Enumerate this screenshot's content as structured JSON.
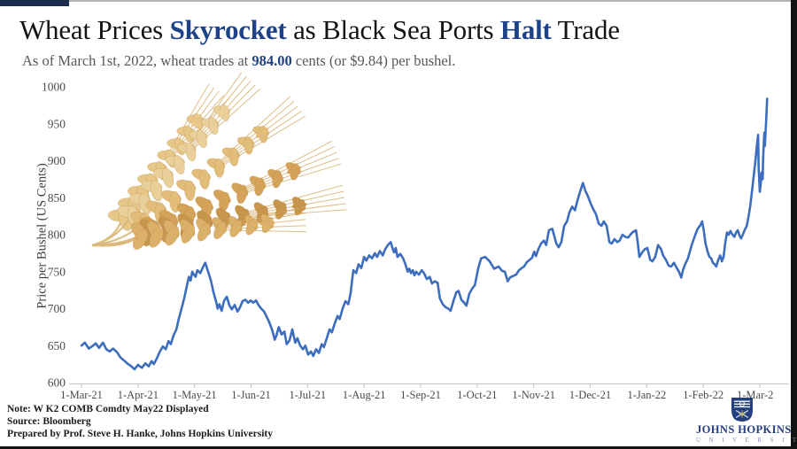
{
  "page": {
    "title": {
      "p1": "Wheat Prices ",
      "accent1": "Skyrocket",
      "p2": " as Black Sea Ports ",
      "accent2": "Halt",
      "p3": " Trade"
    },
    "subtitle": {
      "pre": "As of March 1st, 2022, wheat trades at ",
      "value": "984.00",
      "post": " cents (or $9.84) per bushel."
    },
    "colors": {
      "accent_navy": "#1d4289",
      "line_blue": "#3d6dbd",
      "corner_bar": "#1c2b4e",
      "edge_bar": "#131313"
    }
  },
  "footer": {
    "note": "Note: W K2 COMB Comdty May22 Displayed",
    "source": "Source: Bloomberg",
    "prepared": "Prepared by Prof. Steve H. Hanke, Johns Hopkins University"
  },
  "logo": {
    "name": "JOHNS HOPKINS",
    "univ": "U N I V E R S I T Y"
  },
  "chart_data": {
    "type": "line",
    "ylabel": "Price per Bushel (US Cents)",
    "ylim": [
      600,
      1000
    ],
    "y_tick_labels": [
      600,
      650,
      700,
      750,
      800,
      850,
      900,
      950,
      1000
    ],
    "x_tick_labels": [
      "1-Mar-21",
      "1-Apr-21",
      "1-May-21",
      "1-Jun-21",
      "1-Jul-21",
      "1-Aug-21",
      "1-Sep-21",
      "1-Oct-21",
      "1-Nov-21",
      "1-Dec-21",
      "1-Jan-22",
      "1-Feb-22",
      "1-Mar-2"
    ],
    "x_unit": "months since 1-Mar-2021",
    "grid": false,
    "legend": false,
    "series": [
      {
        "name": "Wheat (W K2 COMB Comdty May22)",
        "color": "#3d6dbd",
        "points": [
          [
            0,
            650
          ],
          [
            0.06,
            654
          ],
          [
            0.13,
            646
          ],
          [
            0.19,
            649
          ],
          [
            0.25,
            653
          ],
          [
            0.31,
            647
          ],
          [
            0.38,
            654
          ],
          [
            0.44,
            645
          ],
          [
            0.5,
            642
          ],
          [
            0.56,
            646
          ],
          [
            0.63,
            641
          ],
          [
            0.69,
            634
          ],
          [
            0.75,
            630
          ],
          [
            0.81,
            626
          ],
          [
            0.88,
            622
          ],
          [
            0.94,
            618
          ],
          [
            1.0,
            624
          ],
          [
            1.07,
            620
          ],
          [
            1.13,
            626
          ],
          [
            1.19,
            622
          ],
          [
            1.24,
            629
          ],
          [
            1.28,
            625
          ],
          [
            1.33,
            632
          ],
          [
            1.38,
            641
          ],
          [
            1.44,
            649
          ],
          [
            1.49,
            645
          ],
          [
            1.54,
            656
          ],
          [
            1.58,
            652
          ],
          [
            1.63,
            664
          ],
          [
            1.68,
            672
          ],
          [
            1.72,
            686
          ],
          [
            1.77,
            700
          ],
          [
            1.82,
            715
          ],
          [
            1.86,
            729
          ],
          [
            1.9,
            743
          ],
          [
            1.93,
            738
          ],
          [
            1.96,
            750
          ],
          [
            1.99,
            746
          ],
          [
            2.02,
            743
          ],
          [
            2.05,
            752
          ],
          [
            2.1,
            748
          ],
          [
            2.15,
            756
          ],
          [
            2.19,
            762
          ],
          [
            2.24,
            750
          ],
          [
            2.29,
            738
          ],
          [
            2.33,
            724
          ],
          [
            2.38,
            710
          ],
          [
            2.41,
            700
          ],
          [
            2.44,
            706
          ],
          [
            2.48,
            697
          ],
          [
            2.52,
            710
          ],
          [
            2.57,
            716
          ],
          [
            2.62,
            704
          ],
          [
            2.66,
            699
          ],
          [
            2.71,
            705
          ],
          [
            2.76,
            696
          ],
          [
            2.8,
            701
          ],
          [
            2.85,
            710
          ],
          [
            2.9,
            712
          ],
          [
            2.95,
            708
          ],
          [
            2.99,
            711
          ],
          [
            3.04,
            708
          ],
          [
            3.09,
            711
          ],
          [
            3.13,
            705
          ],
          [
            3.18,
            700
          ],
          [
            3.23,
            696
          ],
          [
            3.27,
            690
          ],
          [
            3.32,
            682
          ],
          [
            3.37,
            672
          ],
          [
            3.42,
            658
          ],
          [
            3.45,
            664
          ],
          [
            3.49,
            675
          ],
          [
            3.54,
            665
          ],
          [
            3.59,
            669
          ],
          [
            3.63,
            652
          ],
          [
            3.68,
            657
          ],
          [
            3.73,
            672
          ],
          [
            3.78,
            654
          ],
          [
            3.82,
            660
          ],
          [
            3.87,
            650
          ],
          [
            3.92,
            645
          ],
          [
            3.96,
            650
          ],
          [
            4.01,
            638
          ],
          [
            4.06,
            642
          ],
          [
            4.1,
            636
          ],
          [
            4.15,
            645
          ],
          [
            4.2,
            640
          ],
          [
            4.25,
            652
          ],
          [
            4.29,
            648
          ],
          [
            4.34,
            660
          ],
          [
            4.39,
            672
          ],
          [
            4.43,
            668
          ],
          [
            4.48,
            680
          ],
          [
            4.53,
            690
          ],
          [
            4.57,
            686
          ],
          [
            4.62,
            700
          ],
          [
            4.67,
            710
          ],
          [
            4.72,
            706
          ],
          [
            4.76,
            720
          ],
          [
            4.81,
            752
          ],
          [
            4.86,
            748
          ],
          [
            4.9,
            760
          ],
          [
            4.95,
            755
          ],
          [
            5.0,
            770
          ],
          [
            5.04,
            765
          ],
          [
            5.09,
            772
          ],
          [
            5.14,
            768
          ],
          [
            5.19,
            775
          ],
          [
            5.23,
            770
          ],
          [
            5.28,
            778
          ],
          [
            5.33,
            772
          ],
          [
            5.37,
            780
          ],
          [
            5.42,
            786
          ],
          [
            5.47,
            790
          ],
          [
            5.5,
            782
          ],
          [
            5.53,
            776
          ],
          [
            5.56,
            782
          ],
          [
            5.59,
            770
          ],
          [
            5.64,
            774
          ],
          [
            5.69,
            768
          ],
          [
            5.73,
            760
          ],
          [
            5.77,
            750
          ],
          [
            5.8,
            754
          ],
          [
            5.83,
            748
          ],
          [
            5.86,
            752
          ],
          [
            5.89,
            745
          ],
          [
            5.92,
            750
          ],
          [
            5.97,
            746
          ],
          [
            6.02,
            752
          ],
          [
            6.06,
            748
          ],
          [
            6.11,
            740
          ],
          [
            6.16,
            743
          ],
          [
            6.2,
            734
          ],
          [
            6.25,
            737
          ],
          [
            6.3,
            735
          ],
          [
            6.34,
            714
          ],
          [
            6.39,
            706
          ],
          [
            6.44,
            702
          ],
          [
            6.49,
            700
          ],
          [
            6.53,
            697
          ],
          [
            6.58,
            710
          ],
          [
            6.63,
            722
          ],
          [
            6.67,
            724
          ],
          [
            6.72,
            712
          ],
          [
            6.77,
            708
          ],
          [
            6.81,
            704
          ],
          [
            6.86,
            720
          ],
          [
            6.91,
            727
          ],
          [
            6.96,
            732
          ],
          [
            7.02,
            755
          ],
          [
            7.07,
            768
          ],
          [
            7.14,
            770
          ],
          [
            7.22,
            764
          ],
          [
            7.3,
            754
          ],
          [
            7.38,
            757
          ],
          [
            7.44,
            751
          ],
          [
            7.49,
            750
          ],
          [
            7.54,
            737
          ],
          [
            7.58,
            742
          ],
          [
            7.63,
            744
          ],
          [
            7.69,
            746
          ],
          [
            7.74,
            752
          ],
          [
            7.79,
            755
          ],
          [
            7.83,
            757
          ],
          [
            7.88,
            763
          ],
          [
            7.93,
            766
          ],
          [
            7.97,
            769
          ],
          [
            8.01,
            777
          ],
          [
            8.04,
            771
          ],
          [
            8.08,
            780
          ],
          [
            8.13,
            788
          ],
          [
            8.18,
            792
          ],
          [
            8.22,
            786
          ],
          [
            8.27,
            806
          ],
          [
            8.33,
            808
          ],
          [
            8.4,
            788
          ],
          [
            8.44,
            783
          ],
          [
            8.49,
            790
          ],
          [
            8.54,
            812
          ],
          [
            8.59,
            818
          ],
          [
            8.63,
            830
          ],
          [
            8.68,
            838
          ],
          [
            8.73,
            833
          ],
          [
            8.77,
            845
          ],
          [
            8.82,
            858
          ],
          [
            8.87,
            870
          ],
          [
            8.91,
            860
          ],
          [
            8.96,
            852
          ],
          [
            9.01,
            842
          ],
          [
            9.05,
            835
          ],
          [
            9.1,
            828
          ],
          [
            9.15,
            815
          ],
          [
            9.2,
            812
          ],
          [
            9.24,
            818
          ],
          [
            9.29,
            812
          ],
          [
            9.34,
            790
          ],
          [
            9.38,
            788
          ],
          [
            9.43,
            794
          ],
          [
            9.48,
            790
          ],
          [
            9.52,
            792
          ],
          [
            9.57,
            800
          ],
          [
            9.62,
            797
          ],
          [
            9.67,
            796
          ],
          [
            9.71,
            800
          ],
          [
            9.76,
            804
          ],
          [
            9.81,
            806
          ],
          [
            9.84,
            790
          ],
          [
            9.87,
            770
          ],
          [
            9.92,
            776
          ],
          [
            9.96,
            780
          ],
          [
            10.01,
            782
          ],
          [
            10.06,
            766
          ],
          [
            10.1,
            764
          ],
          [
            10.15,
            770
          ],
          [
            10.2,
            786
          ],
          [
            10.25,
            781
          ],
          [
            10.29,
            772
          ],
          [
            10.34,
            766
          ],
          [
            10.39,
            758
          ],
          [
            10.43,
            757
          ],
          [
            10.48,
            762
          ],
          [
            10.53,
            755
          ],
          [
            10.57,
            750
          ],
          [
            10.61,
            742
          ],
          [
            10.64,
            752
          ],
          [
            10.68,
            760
          ],
          [
            10.73,
            768
          ],
          [
            10.79,
            785
          ],
          [
            10.86,
            800
          ],
          [
            10.9,
            808
          ],
          [
            10.95,
            813
          ],
          [
            10.98,
            818
          ],
          [
            11.01,
            805
          ],
          [
            11.04,
            788
          ],
          [
            11.08,
            776
          ],
          [
            11.11,
            770
          ],
          [
            11.14,
            768
          ],
          [
            11.17,
            762
          ],
          [
            11.2,
            760
          ],
          [
            11.23,
            757
          ],
          [
            11.26,
            765
          ],
          [
            11.3,
            772
          ],
          [
            11.33,
            764
          ],
          [
            11.36,
            770
          ],
          [
            11.39,
            790
          ],
          [
            11.42,
            803
          ],
          [
            11.45,
            800
          ],
          [
            11.48,
            805
          ],
          [
            11.51,
            801
          ],
          [
            11.55,
            797
          ],
          [
            11.58,
            803
          ],
          [
            11.61,
            806
          ],
          [
            11.64,
            799
          ],
          [
            11.67,
            795
          ],
          [
            11.7,
            800
          ],
          [
            11.73,
            806
          ],
          [
            11.77,
            812
          ],
          [
            11.8,
            824
          ],
          [
            11.83,
            838
          ],
          [
            11.86,
            858
          ],
          [
            11.89,
            878
          ],
          [
            11.92,
            898
          ],
          [
            11.95,
            922
          ],
          [
            11.97,
            935
          ],
          [
            11.98,
            890
          ],
          [
            12.0,
            858
          ],
          [
            12.02,
            872
          ],
          [
            12.03,
            884
          ],
          [
            12.05,
            875
          ],
          [
            12.06,
            905
          ],
          [
            12.08,
            938
          ],
          [
            12.09,
            920
          ],
          [
            12.11,
            950
          ],
          [
            12.13,
            984
          ]
        ]
      }
    ]
  }
}
